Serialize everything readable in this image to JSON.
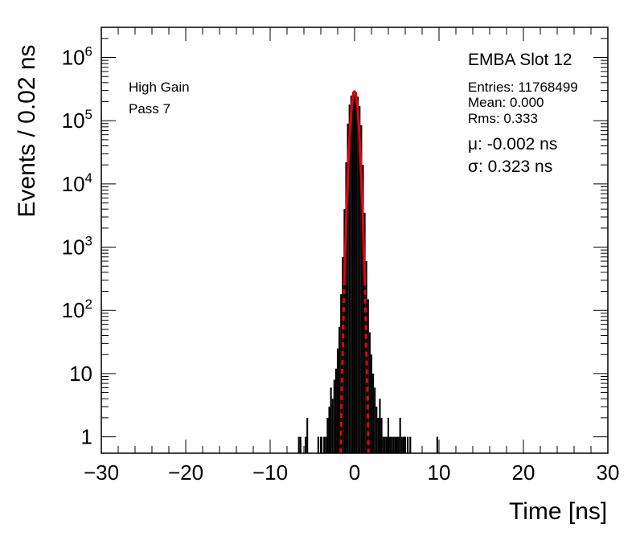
{
  "chart_data": {
    "type": "histogram",
    "title": "EMBA Slot 12",
    "xlabel": "Time [ns]",
    "ylabel": "Events / 0.02 ns",
    "xlim": [
      -30,
      30
    ],
    "ylim": [
      0.55,
      3000000
    ],
    "yscale": "log",
    "x_ticks": [
      "−30",
      "−20",
      "−10",
      "0",
      "10",
      "20",
      "30"
    ],
    "y_ticks": [
      {
        "base": "1",
        "exp": ""
      },
      {
        "base": "10",
        "exp": ""
      },
      {
        "base": "10",
        "exp": "2"
      },
      {
        "base": "10",
        "exp": "3"
      },
      {
        "base": "10",
        "exp": "4"
      },
      {
        "base": "10",
        "exp": "5"
      },
      {
        "base": "10",
        "exp": "6"
      }
    ],
    "grid": false,
    "labels": {
      "gain": "High Gain",
      "pass": "Pass 7"
    },
    "stats": {
      "entries": "Entries: 11768499",
      "mean": "Mean: 0.000",
      "rms": "Rms: 0.333"
    },
    "fit": {
      "mu_text": "μ: -0.002 ns",
      "sigma_text": "σ: 0.323 ns",
      "mu": -0.002,
      "sigma": 0.323,
      "peak": 290000
    },
    "series": [
      {
        "role": "histogram",
        "color": "#000000",
        "x": [
          -6.6,
          -6.4,
          -5.8,
          -5.6,
          -4.3,
          -4.0,
          -3.9,
          -3.6,
          -3.4,
          -3.2,
          -3.0,
          -2.8,
          -2.6,
          -2.4,
          -2.2,
          -2.0,
          -1.8,
          -1.6,
          -1.4,
          -1.2,
          -1.0,
          -0.8,
          -0.6,
          -0.4,
          -0.2,
          0.0,
          0.2,
          0.4,
          0.6,
          0.8,
          1.0,
          1.2,
          1.4,
          1.6,
          1.8,
          2.0,
          2.2,
          2.4,
          2.6,
          2.8,
          3.0,
          3.2,
          3.4,
          3.6,
          3.8,
          4.0,
          4.2,
          4.4,
          4.6,
          4.8,
          5.0,
          5.2,
          5.4,
          5.6,
          5.8,
          6.0,
          6.3,
          6.6,
          9.8
        ],
        "y": [
          1,
          1,
          1,
          2,
          1,
          1,
          1,
          1,
          1,
          2,
          3,
          6,
          4,
          8,
          12,
          25,
          55,
          180,
          700,
          4000,
          22000,
          90000,
          180000,
          250000,
          285000,
          290000,
          280000,
          240000,
          170000,
          85000,
          20000,
          3500,
          600,
          150,
          45,
          20,
          10,
          6,
          3,
          2,
          4,
          2,
          1,
          1,
          1,
          2,
          1,
          1,
          1,
          1,
          1,
          1,
          2,
          1,
          1,
          1,
          1,
          1,
          1
        ]
      },
      {
        "role": "gaussian-fit",
        "color": "#e8000b",
        "style": "solid within fit range, dashed tails"
      }
    ]
  }
}
